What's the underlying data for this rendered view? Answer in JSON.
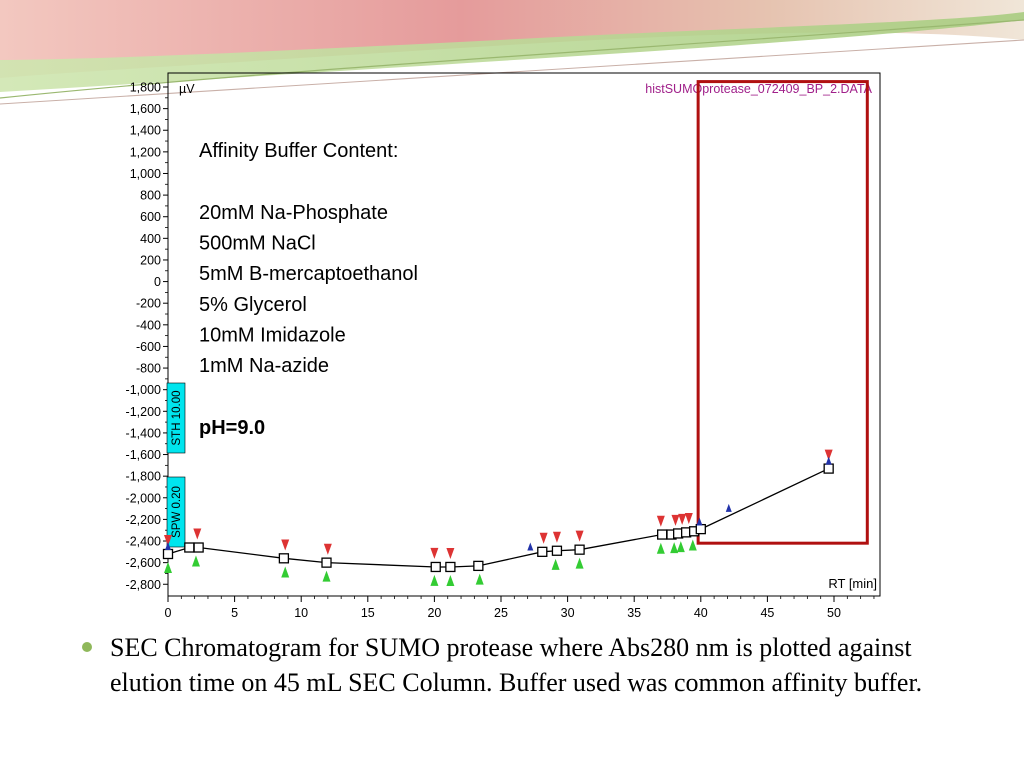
{
  "colors": {
    "frame": "#000000",
    "highlight_box": "#b01010",
    "file_label": "#a0208a",
    "marker_label_bg": "#00e5ee",
    "peak_start": "#33cc33",
    "peak_end": "#dd3333",
    "apex": "#2233aa",
    "bullet": "#8fb85a",
    "banner_pink": "#e8a0a0",
    "banner_green": "#b8d890"
  },
  "chart_data": {
    "type": "line",
    "y_unit_label": "µV",
    "x_unit_label": "RT [min]",
    "file_label": "histSUMOprotease_072409_BP_2.DATA",
    "xlim": [
      0,
      53
    ],
    "ylim": [
      -2900,
      1850
    ],
    "x_ticks": [
      "0",
      "5",
      "10",
      "15",
      "20",
      "25",
      "30",
      "35",
      "40",
      "45",
      "50"
    ],
    "x_tick_values": [
      0,
      5,
      10,
      15,
      20,
      25,
      30,
      35,
      40,
      45,
      50
    ],
    "y_ticks": [
      "1,800",
      "1,600",
      "1,400",
      "1,200",
      "1,000",
      "800",
      "600",
      "400",
      "200",
      "0",
      "-200",
      "-400",
      "-600",
      "-800",
      "-1,000",
      "-1,200",
      "-1,400",
      "-1,600",
      "-1,800",
      "-2,000",
      "-2,200",
      "-2,400",
      "-2,600",
      "-2,800"
    ],
    "y_tick_values": [
      1800,
      1600,
      1400,
      1200,
      1000,
      800,
      600,
      400,
      200,
      0,
      -200,
      -400,
      -600,
      -800,
      -1000,
      -1200,
      -1400,
      -1600,
      -1800,
      -2000,
      -2200,
      -2400,
      -2600,
      -2800
    ],
    "series": [
      {
        "x": [
          0,
          1.6,
          2.3,
          8.7,
          11.9,
          20.1,
          21.2,
          23.3,
          28.1,
          29.2,
          30.9,
          37.1,
          37.8,
          38.3,
          38.9,
          39.5,
          40.0,
          49.6
        ],
        "y": [
          -2520,
          -2460,
          -2460,
          -2560,
          -2600,
          -2640,
          -2640,
          -2630,
          -2500,
          -2490,
          -2480,
          -2340,
          -2340,
          -2330,
          -2320,
          -2310,
          -2290,
          -1730
        ],
        "markers": "square"
      }
    ],
    "peak_start_markers_x": [
      0,
      2.1,
      8.8,
      11.9,
      20.0,
      21.2,
      23.4,
      29.1,
      30.9,
      37.0,
      38.0,
      38.5,
      39.4
    ],
    "peak_end_markers_x": [
      0,
      2.2,
      8.8,
      12.0,
      20.0,
      21.2,
      28.2,
      29.2,
      30.9,
      37.0,
      38.1,
      38.6,
      39.1,
      49.6
    ],
    "apex_markers_x": [
      0,
      27.2,
      39.9,
      42.1,
      49.6
    ],
    "highlight_region": {
      "x_start": 39.8,
      "x_end": 52.5,
      "y_top": 1850,
      "y_bottom": -2420
    },
    "markers_labels": [
      "STH 10.00",
      "SPW 0.20"
    ],
    "annotation": {
      "title": "Affinity Buffer Content:",
      "lines": [
        "20mM Na-Phosphate",
        "500mM NaCl",
        "5mM B-mercaptoethanol",
        "5% Glycerol",
        "10mM Imidazole",
        "1mM Na-azide"
      ],
      "ph": "pH=9.0"
    }
  },
  "caption": "SEC Chromatogram for SUMO protease where Abs280 nm is plotted against elution time on 45 mL SEC Column. Buffer used was common affinity buffer."
}
